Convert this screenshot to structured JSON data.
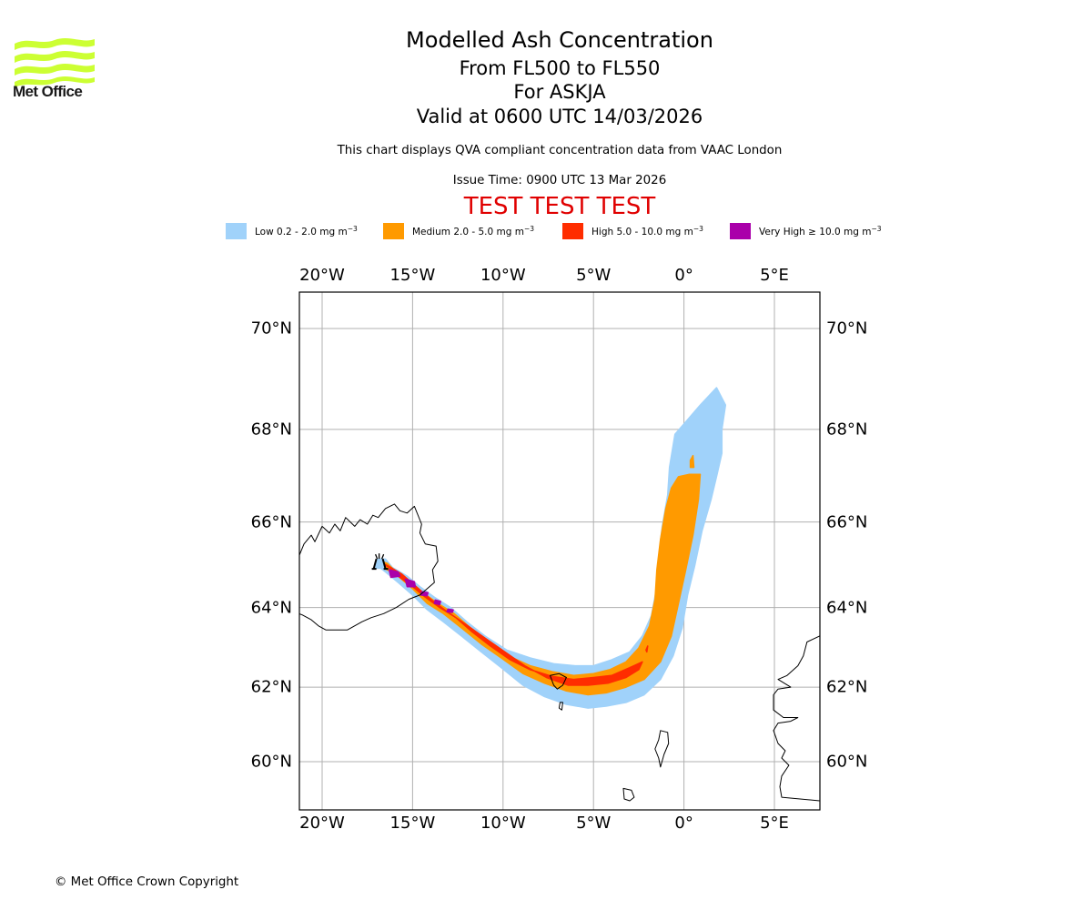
{
  "header": {
    "logo_text": "Met Office",
    "title": "Modelled Ash Concentration",
    "level_range": "From FL500 to FL550",
    "volcano": "For ASKJA",
    "valid_time": "Valid at 0600 UTC 14/03/2026",
    "subtitle": "This chart displays QVA compliant concentration data from VAAC London",
    "issue_time": "Issue Time: 0900 UTC 13 Mar 2026",
    "test_banner": "TEST TEST TEST"
  },
  "legend": [
    {
      "name": "Low",
      "label": "Low 0.2 - 2.0 mg m",
      "exp": "−3",
      "color": "#a0d2fa"
    },
    {
      "name": "Medium",
      "label": "Medium 2.0 - 5.0 mg m",
      "exp": "−3",
      "color": "#ff9a00"
    },
    {
      "name": "High",
      "label": "High 5.0 - 10.0 mg m",
      "exp": "−3",
      "color": "#ff2d00"
    },
    {
      "name": "Very High",
      "label": "Very High  ≥  10.0 mg m",
      "exp": "−3",
      "color": "#aa00aa"
    }
  ],
  "footer": {
    "copyright": "© Met Office Crown Copyright"
  },
  "colors": {
    "grid": "#b0b0b0",
    "coast": "#000000",
    "frame": "#000000",
    "logo": "#ccff33",
    "test": "#e00000"
  },
  "chart_data": {
    "type": "map",
    "title": "Modelled Ash Concentration",
    "projection": "mercator",
    "extent": {
      "lon": [
        -21.3,
        7.5
      ],
      "lat": [
        58.9,
        70.7
      ]
    },
    "grid": true,
    "lon_ticks": [
      {
        "value": -20,
        "label": "20°W"
      },
      {
        "value": -15,
        "label": "15°W"
      },
      {
        "value": -10,
        "label": "10°W"
      },
      {
        "value": -5,
        "label": "5°W"
      },
      {
        "value": 0,
        "label": "0°"
      },
      {
        "value": 5,
        "label": "5°E"
      }
    ],
    "lat_ticks": [
      {
        "value": 70,
        "label": "70°N"
      },
      {
        "value": 68,
        "label": "68°N"
      },
      {
        "value": 66,
        "label": "66°N"
      },
      {
        "value": 64,
        "label": "64°N"
      },
      {
        "value": 62,
        "label": "62°N"
      },
      {
        "value": 60,
        "label": "60°N"
      }
    ],
    "volcano": {
      "name": "ASKJA",
      "lon": -16.75,
      "lat": 65.05
    },
    "ash_layers": [
      {
        "level": "Low",
        "color": "#a0d2fa",
        "polygons": [
          [
            [
              -16.9,
              65.15
            ],
            [
              -16.5,
              65.15
            ],
            [
              -16.1,
              64.95
            ],
            [
              -15.3,
              64.75
            ],
            [
              -14.6,
              64.5
            ],
            [
              -13.8,
              64.25
            ],
            [
              -12.9,
              64.0
            ],
            [
              -12.0,
              63.65
            ],
            [
              -11.0,
              63.3
            ],
            [
              -9.8,
              62.95
            ],
            [
              -8.5,
              62.75
            ],
            [
              -7.2,
              62.6
            ],
            [
              -6.0,
              62.55
            ],
            [
              -5.0,
              62.55
            ],
            [
              -4.0,
              62.7
            ],
            [
              -3.0,
              62.9
            ],
            [
              -2.3,
              63.3
            ],
            [
              -1.8,
              63.8
            ],
            [
              -1.5,
              64.5
            ],
            [
              -1.4,
              65.2
            ],
            [
              -1.2,
              65.9
            ],
            [
              -0.9,
              66.6
            ],
            [
              -0.8,
              67.2
            ],
            [
              -0.5,
              67.9
            ],
            [
              0.2,
              68.2
            ],
            [
              0.9,
              68.5
            ],
            [
              1.8,
              68.85
            ],
            [
              2.3,
              68.5
            ],
            [
              2.1,
              68.0
            ],
            [
              2.1,
              67.5
            ],
            [
              1.8,
              67.0
            ],
            [
              1.5,
              66.5
            ],
            [
              1.0,
              65.8
            ],
            [
              0.6,
              65.0
            ],
            [
              0.2,
              64.3
            ],
            [
              -0.1,
              63.5
            ],
            [
              -0.6,
              62.8
            ],
            [
              -1.3,
              62.2
            ],
            [
              -2.2,
              61.8
            ],
            [
              -3.2,
              61.6
            ],
            [
              -4.3,
              61.5
            ],
            [
              -5.3,
              61.45
            ],
            [
              -6.5,
              61.55
            ],
            [
              -7.7,
              61.75
            ],
            [
              -8.9,
              62.05
            ],
            [
              -10.1,
              62.5
            ],
            [
              -11.2,
              62.9
            ],
            [
              -12.3,
              63.3
            ],
            [
              -13.3,
              63.65
            ],
            [
              -14.2,
              63.95
            ],
            [
              -15.0,
              64.3
            ],
            [
              -15.8,
              64.6
            ],
            [
              -16.5,
              64.85
            ],
            [
              -16.95,
              65.0
            ]
          ]
        ]
      },
      {
        "level": "Medium",
        "color": "#ff9a00",
        "polygons": [
          [
            [
              -16.75,
              65.1
            ],
            [
              -16.4,
              65.05
            ],
            [
              -15.9,
              64.85
            ],
            [
              -15.1,
              64.6
            ],
            [
              -14.4,
              64.35
            ],
            [
              -13.6,
              64.1
            ],
            [
              -12.7,
              63.85
            ],
            [
              -11.8,
              63.5
            ],
            [
              -10.8,
              63.15
            ],
            [
              -9.7,
              62.8
            ],
            [
              -8.5,
              62.55
            ],
            [
              -7.3,
              62.4
            ],
            [
              -6.1,
              62.3
            ],
            [
              -5.0,
              62.35
            ],
            [
              -4.1,
              62.45
            ],
            [
              -3.2,
              62.65
            ],
            [
              -2.5,
              63.0
            ],
            [
              -1.9,
              63.55
            ],
            [
              -1.6,
              64.2
            ],
            [
              -1.5,
              64.9
            ],
            [
              -1.3,
              65.6
            ],
            [
              -1.0,
              66.3
            ],
            [
              -0.7,
              66.75
            ],
            [
              -0.3,
              67.0
            ],
            [
              0.3,
              67.05
            ],
            [
              0.9,
              67.05
            ],
            [
              0.8,
              66.5
            ],
            [
              0.5,
              65.7
            ],
            [
              0.1,
              64.9
            ],
            [
              -0.3,
              64.1
            ],
            [
              -0.7,
              63.3
            ],
            [
              -1.3,
              62.65
            ],
            [
              -2.2,
              62.2
            ],
            [
              -3.2,
              62.0
            ],
            [
              -4.3,
              61.85
            ],
            [
              -5.3,
              61.8
            ],
            [
              -6.5,
              61.9
            ],
            [
              -7.7,
              62.1
            ],
            [
              -8.9,
              62.35
            ],
            [
              -10.1,
              62.75
            ],
            [
              -11.2,
              63.1
            ],
            [
              -12.3,
              63.5
            ],
            [
              -13.3,
              63.85
            ],
            [
              -14.2,
              64.1
            ],
            [
              -15.0,
              64.45
            ],
            [
              -15.8,
              64.75
            ],
            [
              -16.6,
              64.95
            ]
          ],
          [
            [
              0.35,
              67.35
            ],
            [
              0.5,
              67.45
            ],
            [
              0.55,
              67.2
            ],
            [
              0.35,
              67.2
            ]
          ]
        ]
      },
      {
        "level": "High",
        "color": "#ff2d00",
        "polygons": [
          [
            [
              -16.65,
              65.05
            ],
            [
              -16.3,
              64.95
            ],
            [
              -15.8,
              64.75
            ],
            [
              -15.0,
              64.5
            ],
            [
              -14.3,
              64.25
            ],
            [
              -13.5,
              64.0
            ],
            [
              -12.6,
              63.75
            ],
            [
              -11.7,
              63.4
            ],
            [
              -10.7,
              63.05
            ],
            [
              -9.6,
              62.7
            ],
            [
              -8.5,
              62.45
            ],
            [
              -7.3,
              62.28
            ],
            [
              -6.1,
              62.2
            ],
            [
              -5.0,
              62.25
            ],
            [
              -4.0,
              62.3
            ],
            [
              -3.0,
              62.5
            ],
            [
              -2.3,
              62.65
            ],
            [
              -2.5,
              62.45
            ],
            [
              -3.2,
              62.25
            ],
            [
              -4.2,
              62.1
            ],
            [
              -5.3,
              62.05
            ],
            [
              -6.4,
              62.05
            ],
            [
              -7.6,
              62.25
            ],
            [
              -8.8,
              62.55
            ],
            [
              -9.9,
              62.9
            ],
            [
              -11.0,
              63.25
            ],
            [
              -12.1,
              63.6
            ],
            [
              -13.1,
              63.9
            ],
            [
              -14.0,
              64.2
            ],
            [
              -14.8,
              64.5
            ],
            [
              -15.6,
              64.8
            ],
            [
              -16.4,
              65.0
            ]
          ],
          [
            [
              -2.1,
              62.95
            ],
            [
              -2.0,
              63.05
            ],
            [
              -2.05,
              62.9
            ]
          ]
        ]
      },
      {
        "level": "Very High",
        "color": "#aa00aa",
        "polygons": [
          [
            [
              -16.3,
              64.9
            ],
            [
              -15.8,
              64.85
            ],
            [
              -15.7,
              64.75
            ],
            [
              -16.2,
              64.72
            ]
          ],
          [
            [
              -15.4,
              64.68
            ],
            [
              -14.9,
              64.62
            ],
            [
              -14.85,
              64.5
            ],
            [
              -15.3,
              64.5
            ]
          ],
          [
            [
              -14.5,
              64.38
            ],
            [
              -14.15,
              64.36
            ],
            [
              -14.2,
              64.28
            ],
            [
              -14.55,
              64.3
            ]
          ],
          [
            [
              -13.75,
              64.18
            ],
            [
              -13.45,
              64.15
            ],
            [
              -13.5,
              64.07
            ],
            [
              -13.8,
              64.1
            ]
          ],
          [
            [
              -13.05,
              63.96
            ],
            [
              -12.75,
              63.94
            ],
            [
              -12.8,
              63.88
            ],
            [
              -13.1,
              63.9
            ]
          ]
        ]
      }
    ],
    "coastlines": [
      {
        "name": "Iceland",
        "closed": false,
        "points": [
          [
            -21.3,
            65.2
          ],
          [
            -21.0,
            65.5
          ],
          [
            -20.6,
            65.7
          ],
          [
            -20.4,
            65.55
          ],
          [
            -20.0,
            65.9
          ],
          [
            -19.6,
            65.75
          ],
          [
            -19.3,
            65.95
          ],
          [
            -19.0,
            65.8
          ],
          [
            -18.7,
            66.1
          ],
          [
            -18.2,
            65.9
          ],
          [
            -17.9,
            66.05
          ],
          [
            -17.5,
            65.95
          ],
          [
            -17.2,
            66.15
          ],
          [
            -16.9,
            66.1
          ],
          [
            -16.5,
            66.3
          ],
          [
            -16.0,
            66.4
          ],
          [
            -15.7,
            66.25
          ],
          [
            -15.3,
            66.2
          ],
          [
            -14.9,
            66.35
          ],
          [
            -14.5,
            65.95
          ],
          [
            -14.6,
            65.75
          ],
          [
            -14.3,
            65.5
          ],
          [
            -13.7,
            65.45
          ],
          [
            -13.6,
            65.1
          ],
          [
            -13.9,
            64.9
          ],
          [
            -13.8,
            64.6
          ],
          [
            -14.2,
            64.45
          ],
          [
            -14.6,
            64.3
          ],
          [
            -15.2,
            64.2
          ],
          [
            -15.9,
            64.0
          ],
          [
            -16.6,
            63.85
          ],
          [
            -17.3,
            63.75
          ],
          [
            -17.8,
            63.65
          ],
          [
            -18.6,
            63.45
          ],
          [
            -19.2,
            63.45
          ],
          [
            -19.8,
            63.45
          ],
          [
            -20.2,
            63.55
          ],
          [
            -20.6,
            63.7
          ],
          [
            -21.1,
            63.82
          ],
          [
            -21.3,
            63.85
          ]
        ]
      },
      {
        "name": "Faroe Islands",
        "closed": true,
        "points": [
          [
            -7.4,
            62.3
          ],
          [
            -6.9,
            62.35
          ],
          [
            -6.5,
            62.25
          ],
          [
            -6.7,
            62.05
          ],
          [
            -7.0,
            61.95
          ],
          [
            -7.2,
            62.05
          ]
        ]
      },
      {
        "name": "Suduroy",
        "closed": true,
        "points": [
          [
            -6.85,
            61.6
          ],
          [
            -6.7,
            61.6
          ],
          [
            -6.75,
            61.4
          ],
          [
            -6.9,
            61.45
          ]
        ]
      },
      {
        "name": "Shetland",
        "closed": true,
        "points": [
          [
            -1.3,
            60.85
          ],
          [
            -0.9,
            60.8
          ],
          [
            -0.85,
            60.5
          ],
          [
            -1.1,
            60.2
          ],
          [
            -1.3,
            59.85
          ],
          [
            -1.4,
            60.1
          ],
          [
            -1.6,
            60.35
          ],
          [
            -1.4,
            60.6
          ]
        ]
      },
      {
        "name": "Orkney",
        "closed": true,
        "points": [
          [
            -3.35,
            59.25
          ],
          [
            -2.9,
            59.2
          ],
          [
            -2.75,
            59.0
          ],
          [
            -3.0,
            58.9
          ],
          [
            -3.3,
            58.95
          ]
        ]
      },
      {
        "name": "Norway",
        "closed": false,
        "points": [
          [
            7.5,
            63.3
          ],
          [
            6.8,
            63.15
          ],
          [
            6.6,
            62.8
          ],
          [
            6.3,
            62.55
          ],
          [
            5.7,
            62.3
          ],
          [
            5.2,
            62.2
          ],
          [
            5.9,
            62.0
          ],
          [
            5.2,
            61.95
          ],
          [
            4.95,
            61.8
          ],
          [
            4.95,
            61.4
          ],
          [
            5.5,
            61.2
          ],
          [
            6.3,
            61.2
          ],
          [
            5.9,
            61.1
          ],
          [
            5.2,
            61.05
          ],
          [
            4.95,
            60.85
          ],
          [
            5.2,
            60.5
          ],
          [
            5.6,
            60.3
          ],
          [
            5.4,
            60.1
          ],
          [
            5.8,
            59.9
          ],
          [
            5.4,
            59.6
          ],
          [
            5.3,
            59.3
          ],
          [
            5.4,
            59.0
          ],
          [
            7.5,
            58.9
          ]
        ]
      }
    ]
  }
}
